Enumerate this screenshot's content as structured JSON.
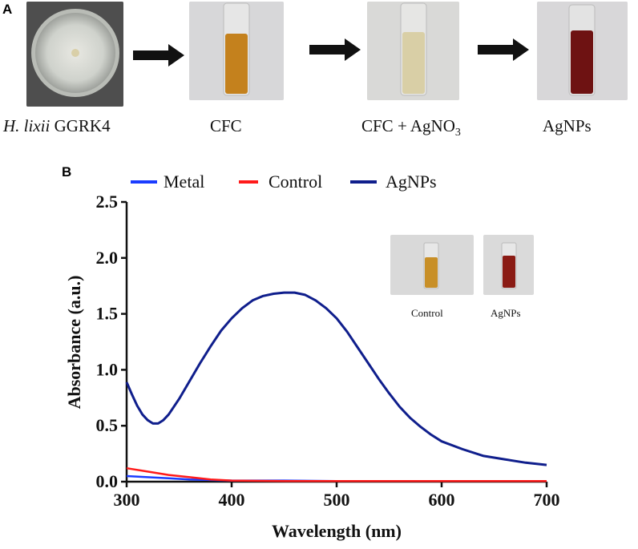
{
  "panel_a": {
    "label": "A",
    "steps": [
      {
        "caption_italic": "H. lixii",
        "caption_rest": " GGRK4"
      },
      {
        "caption": "CFC"
      },
      {
        "caption": "CFC + AgNO",
        "caption_sub": "3"
      },
      {
        "caption": "AgNPs"
      }
    ]
  },
  "panel_b": {
    "label": "B",
    "inset": {
      "left_label": "Control",
      "right_label": "AgNPs"
    }
  },
  "colors": {
    "metal": "#1a3cff",
    "control": "#ff1a1a",
    "agnps": "#0f1e8c"
  },
  "chart_data": {
    "type": "line",
    "title": "",
    "xlabel": "Wavelength (nm)",
    "ylabel": "Absorbance (a.u.)",
    "xlim": [
      300,
      700
    ],
    "ylim": [
      0,
      2.5
    ],
    "x_ticks": [
      "300",
      "400",
      "500",
      "600",
      "700"
    ],
    "y_ticks": [
      "0.0",
      "0.5",
      "1.0",
      "1.5",
      "2.0",
      "2.5"
    ],
    "legend": [
      "Metal",
      "Control",
      "AgNPs"
    ],
    "legend_position": "top",
    "series": [
      {
        "name": "Metal",
        "x": [
          300,
          320,
          340,
          360,
          380,
          400,
          450,
          500,
          600,
          700
        ],
        "values": [
          0.05,
          0.04,
          0.03,
          0.02,
          0.015,
          0.01,
          0.01,
          0.005,
          0.005,
          0.005
        ]
      },
      {
        "name": "Control",
        "x": [
          300,
          320,
          340,
          360,
          380,
          400,
          450,
          500,
          600,
          700
        ],
        "values": [
          0.12,
          0.09,
          0.06,
          0.04,
          0.02,
          0.01,
          0.005,
          0.005,
          0.005,
          0.005
        ]
      },
      {
        "name": "AgNPs",
        "x": [
          300,
          305,
          310,
          315,
          320,
          325,
          330,
          335,
          340,
          350,
          360,
          370,
          380,
          390,
          400,
          410,
          420,
          430,
          440,
          450,
          460,
          470,
          480,
          490,
          500,
          510,
          520,
          530,
          540,
          550,
          560,
          570,
          580,
          590,
          600,
          620,
          640,
          660,
          680,
          700
        ],
        "values": [
          0.89,
          0.78,
          0.68,
          0.6,
          0.55,
          0.52,
          0.52,
          0.55,
          0.6,
          0.74,
          0.9,
          1.06,
          1.21,
          1.35,
          1.46,
          1.55,
          1.62,
          1.66,
          1.68,
          1.69,
          1.69,
          1.67,
          1.62,
          1.55,
          1.46,
          1.34,
          1.2,
          1.06,
          0.92,
          0.79,
          0.67,
          0.57,
          0.49,
          0.42,
          0.36,
          0.29,
          0.23,
          0.2,
          0.17,
          0.15
        ]
      }
    ]
  }
}
